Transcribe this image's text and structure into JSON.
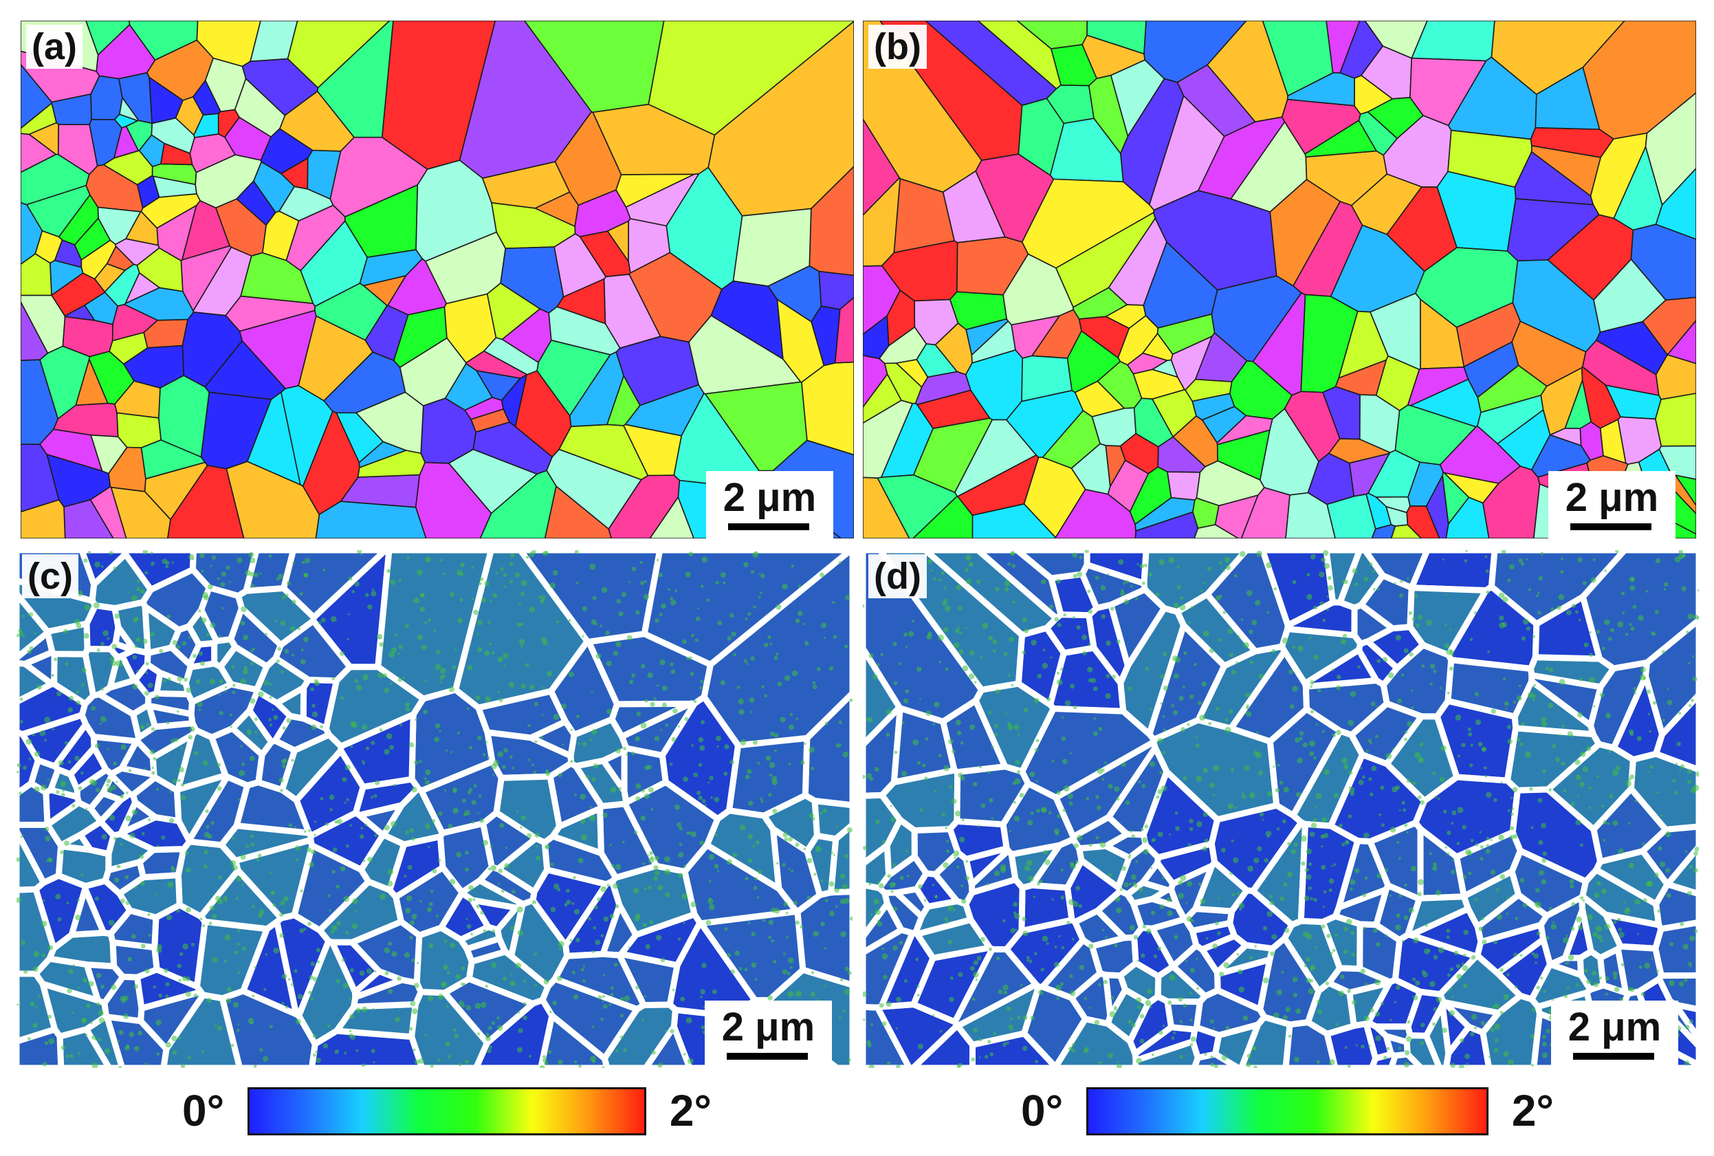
{
  "panels": [
    {
      "label": "(a)",
      "scale": "2 μm",
      "map_type": "orientation"
    },
    {
      "label": "(b)",
      "scale": "2 μm",
      "map_type": "orientation"
    },
    {
      "label": "(c)",
      "scale": "2 μm",
      "map_type": "misorientation"
    },
    {
      "label": "(d)",
      "scale": "2 μm",
      "map_type": "misorientation"
    }
  ],
  "colorbars": [
    {
      "min": "0°",
      "max": "2°"
    },
    {
      "min": "0°",
      "max": "2°"
    }
  ],
  "colors": {
    "orientation_palette": [
      "#ff2d2d",
      "#ff3d9c",
      "#ff6ad5",
      "#e040ff",
      "#a44dff",
      "#5a3bff",
      "#2b2bff",
      "#2f6dff",
      "#27b8ff",
      "#18e7ff",
      "#3fffd8",
      "#33ff8c",
      "#1cff2a",
      "#6dff3a",
      "#c8ff2c",
      "#fff12c",
      "#ffc22e",
      "#ff8f2d",
      "#ff6a3c",
      "#f0a0ff",
      "#9fffe0",
      "#d0ffc0"
    ],
    "misorientation_blue": "#1f3fd0",
    "misorientation_green": "#3fbf3f",
    "boundary": "#ffffff",
    "colorbar_stops": [
      "#1f1fff",
      "#1f6fff",
      "#18d0ff",
      "#10ff40",
      "#30ff10",
      "#f8ff10",
      "#ff9a10",
      "#ff1f10"
    ]
  }
}
